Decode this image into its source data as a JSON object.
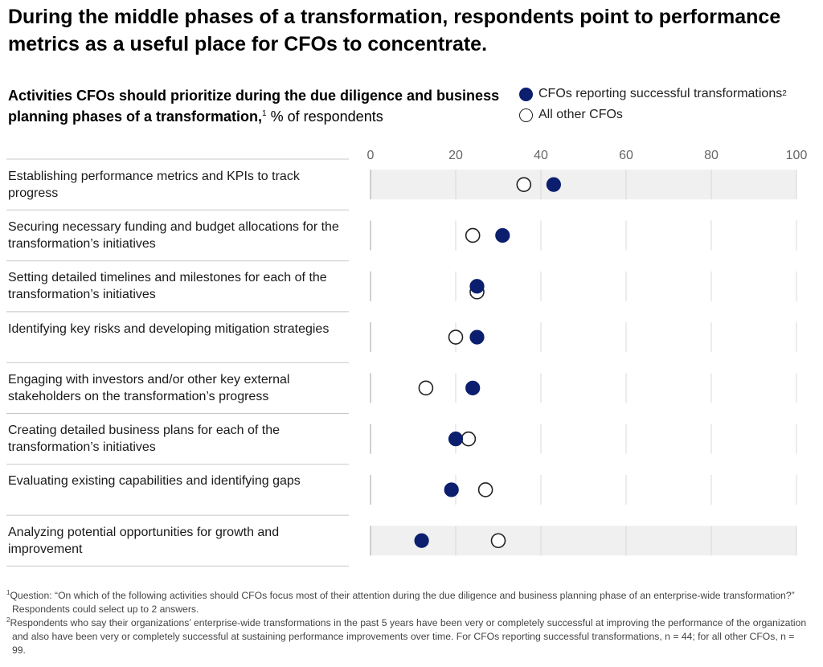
{
  "title": "During the middle phases of a transformation, respondents point to performance metrics as a useful place for CFOs to concentrate.",
  "subtitle": {
    "bold": "Activities CFOs should prioritize during the due diligence and business planning phases of a transformation,",
    "sup": "1",
    "unit": " % of respondents"
  },
  "legend": [
    {
      "label": "CFOs reporting successful transformations",
      "sup": "2",
      "color": "#0b1f6e",
      "style": "filled"
    },
    {
      "label": "All other CFOs",
      "sup": "",
      "color": "#ffffff",
      "style": "open"
    }
  ],
  "chart_data": {
    "type": "scatter",
    "xlim": [
      0,
      100
    ],
    "x_ticks": [
      "0",
      "20",
      "40",
      "60",
      "80",
      "100"
    ],
    "highlighted_rows": [
      0,
      7
    ],
    "categories": [
      "Establishing performance metrics and KPIs to track progress",
      "Securing necessary funding and budget allocations for the transformation’s initiatives",
      "Setting detailed timelines and milestones for each of the transformation’s initiatives",
      "Identifying key risks and developing mitigation strategies",
      "Engaging with investors and/or other key external stakeholders on the transformation’s progress",
      "Creating detailed business plans for each of the transformation’s initiatives",
      "Evaluating existing capabilities and identifying gaps",
      "Analyzing potential opportunities for growth and improvement"
    ],
    "series": [
      {
        "name": "CFOs reporting successful transformations",
        "color": "#0b1f6e",
        "values": [
          43,
          31,
          25,
          25,
          24,
          20,
          19,
          12
        ]
      },
      {
        "name": "All other CFOs",
        "color": "#ffffff",
        "values": [
          36,
          24,
          25,
          20,
          13,
          23,
          27,
          30
        ]
      }
    ]
  },
  "footnotes": [
    {
      "sup": "1",
      "text": "Question: “On which of the following activities should CFOs focus most of their attention during the due diligence and business planning phase of an enterprise-wide transformation?” Respondents could select up to 2 answers."
    },
    {
      "sup": "2",
      "text": "Respondents who say their organizations’ enterprise-wide transformations in the past 5 years have been very or completely successful at improving the performance of the organization and also have been very or completely successful at sustaining performance improvements over time. For CFOs reporting successful transformations, n = 44; for all other CFOs, n = 99."
    }
  ]
}
